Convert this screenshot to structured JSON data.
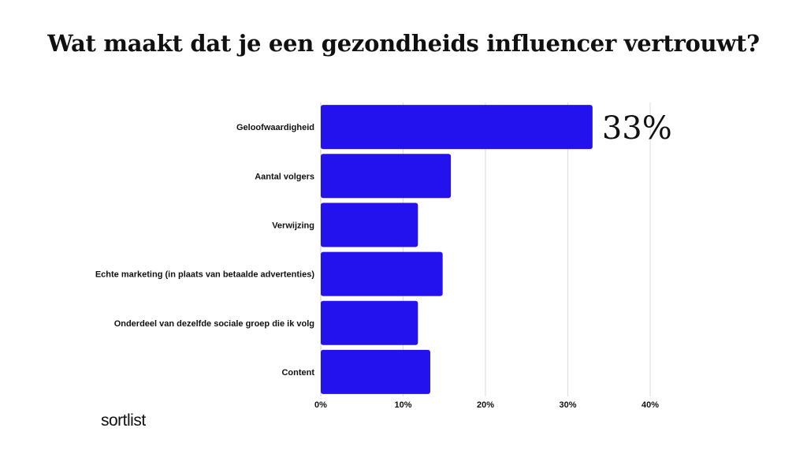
{
  "chart_data": {
    "type": "bar",
    "orientation": "horizontal",
    "title": "Wat maakt dat je een gezondheids influencer vertrouwt?",
    "categories": [
      "Geloofwaardigheid",
      "Aantal volgers",
      "Verwijzing",
      "Echte marketing (in plaats van betaalde advertenties)",
      "Onderdeel van dezelfde sociale groep die ik volg",
      "Content"
    ],
    "values": [
      33,
      15.8,
      11.8,
      14.8,
      11.8,
      13.3
    ],
    "data_labels": [
      "33%",
      "",
      "",
      "",
      "",
      ""
    ],
    "xlim": [
      0,
      40
    ],
    "xticks": [
      0,
      10,
      20,
      30,
      40
    ],
    "xtick_labels": [
      "0%",
      "10%",
      "20%",
      "30%",
      "40%"
    ],
    "xlabel": "",
    "ylabel": "",
    "grid": "vertical",
    "legend": "none",
    "bar_color": "#2412EE",
    "grid_color": "#DDDDDD"
  },
  "brand": {
    "logo_text": "sortlist"
  }
}
